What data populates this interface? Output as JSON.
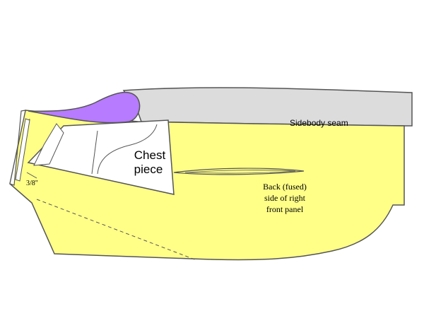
{
  "labels": {
    "chest_piece_line1": "Chest",
    "chest_piece_line2": "piece",
    "sidebody_seam": "Sidebody seam",
    "back_line1": "Back (fused)",
    "back_line2": "side of right",
    "back_line3": "front panel",
    "measurement": "3/8\""
  },
  "colors": {
    "panel_fill": "#ffff88",
    "sidebody_fill": "#dcdcdc",
    "lapel_fill": "#b77bff",
    "chest_piece_fill": "#ffffff",
    "outline": "#555555"
  }
}
